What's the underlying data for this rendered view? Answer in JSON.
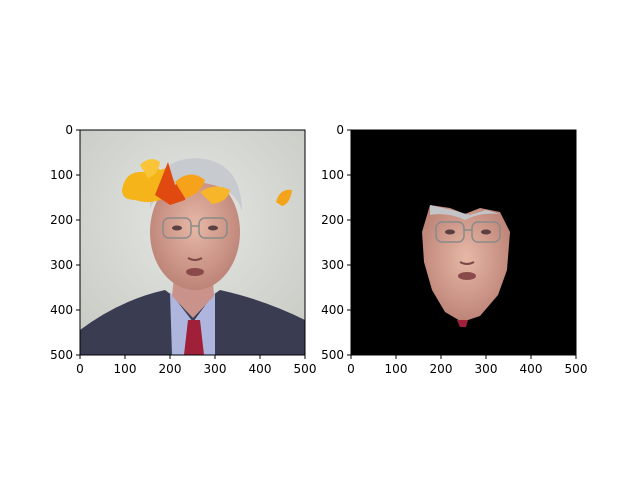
{
  "chart_data": [
    {
      "type": "image",
      "title": "",
      "xlabel": "",
      "ylabel": "",
      "xlim": [
        0,
        500
      ],
      "ylim": [
        500,
        0
      ],
      "xticks": [
        0,
        100,
        200,
        300,
        400,
        500
      ],
      "yticks": [
        0,
        100,
        200,
        300,
        400,
        500
      ],
      "content": "photo of a man in a suit with autumn leaves over his hair",
      "colors": {
        "background": "#d6d8d2",
        "suit": "#3a3d52",
        "tie": "#a0203a",
        "leaf": "#f2a516"
      }
    },
    {
      "type": "image",
      "title": "",
      "xlabel": "",
      "ylabel": "",
      "xlim": [
        0,
        500
      ],
      "ylim": [
        500,
        0
      ],
      "xticks": [
        0,
        100,
        200,
        300,
        400,
        500
      ],
      "yticks": [
        0,
        100,
        200,
        300,
        400,
        500
      ],
      "content": "segmented face on black background",
      "colors": {
        "background": "#000000"
      }
    }
  ]
}
